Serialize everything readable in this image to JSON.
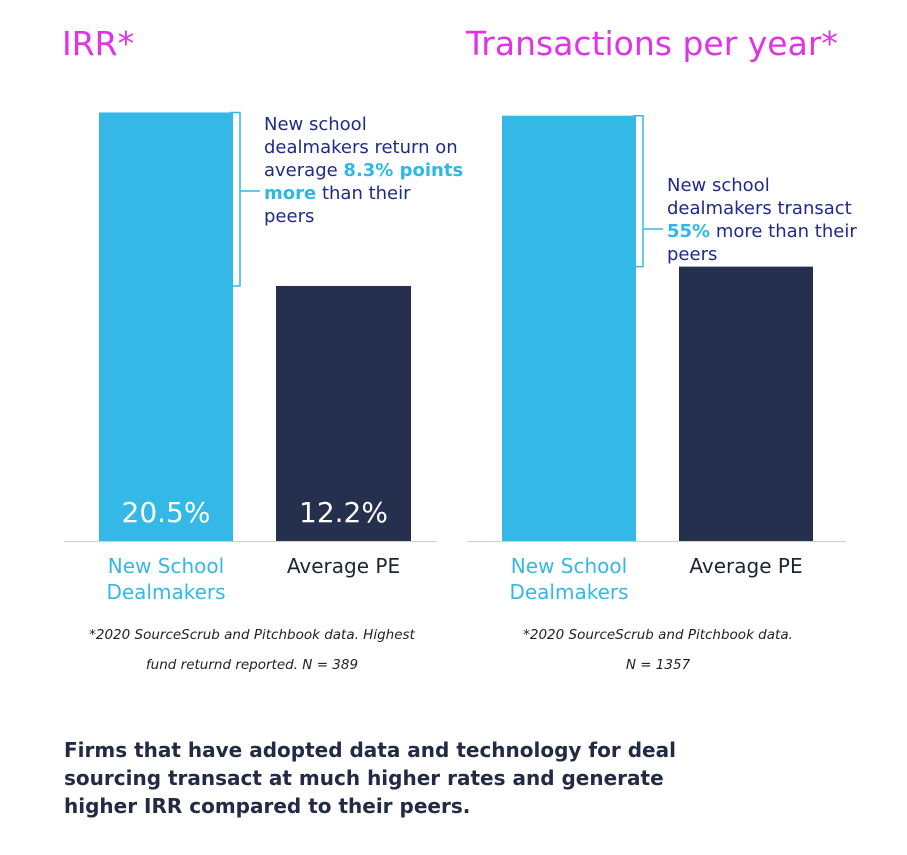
{
  "colors": {
    "accent": "#34b9e6",
    "dark": "#252f4e",
    "title": "#e033e6",
    "annot": "#1f2a8a"
  },
  "summary": "Firms that have adopted data and technology for deal sourcing transact at much higher rates and generate higher IRR  compared to their peers.",
  "chart_data": [
    {
      "type": "bar",
      "title": "IRR*",
      "categories": [
        "New School Dealmakers",
        "Average PE"
      ],
      "values": [
        20.5,
        12.2
      ],
      "data_labels": [
        "20.5%",
        "12.2%"
      ],
      "ylim": [
        0,
        21
      ],
      "annotation": {
        "pre": "New school dealmakers return on average",
        "highlight": "8.3% points more",
        "post": "than their peers"
      },
      "footnote": {
        "line1": "*2020 SourceScrub and Pitchbook data. Highest",
        "line2": "fund returnd reported. N = 389"
      }
    },
    {
      "type": "bar",
      "title": "Transactions per year*",
      "categories": [
        "New School Dealmakers",
        "Average PE"
      ],
      "values": [
        1.55,
        1.0
      ],
      "ylim": [
        0,
        1.6
      ],
      "annotation": {
        "pre": "New school dealmakers transact",
        "highlight": "55%",
        "post": "more than their peers"
      },
      "footnote": {
        "line1": "*2020 SourceScrub and Pitchbook data.",
        "line2": "N = 1357"
      }
    }
  ]
}
